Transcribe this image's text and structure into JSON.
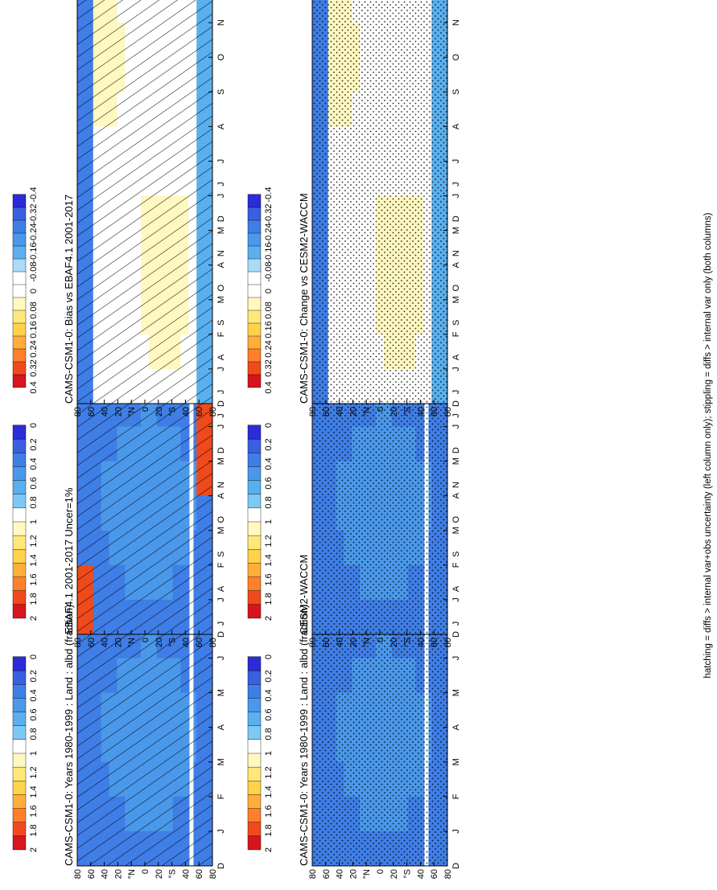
{
  "figure": {
    "footnote": "hatching = diffs > internal var+obs uncertainty (left column only); stippling = diffs > internal var only (both columns)"
  },
  "colors": {
    "abs_scale": [
      "#2b2bd9",
      "#3a5fe0",
      "#3f7ee6",
      "#4a98ea",
      "#5ab0ee",
      "#7ccaf4",
      "#ffffff",
      "#fff8c0",
      "#ffe87a",
      "#ffd24a",
      "#ffae3a",
      "#ff7f2a",
      "#f04a1c",
      "#d8141e"
    ],
    "diff_scale": [
      "#2b2bd9",
      "#3a5fe0",
      "#3f7ee6",
      "#4a98ea",
      "#5ab0ee",
      "#a9dcf6",
      "#ffffff",
      "#ffffff",
      "#fff8c0",
      "#ffe87a",
      "#ffd24a",
      "#ffae3a",
      "#ff7f2a",
      "#f04a1c",
      "#d8141e"
    ]
  },
  "chart_data": [
    {
      "id": "p1",
      "type": "heatmap",
      "title": "CAMS-CSM1-0: Years 1980-1999 : Land : albd (fraction)",
      "x": [
        "D",
        "J",
        "F",
        "M",
        "A",
        "M",
        "J",
        "J",
        "A",
        "S",
        "O",
        "N",
        "D",
        "J"
      ],
      "y": [
        "80",
        "60",
        "40",
        "20",
        "°N",
        "0",
        "20",
        "°S",
        "40",
        "60",
        "80"
      ],
      "colorbar": [
        "2",
        "1.8",
        "1.6",
        "1.4",
        "1.2",
        "1",
        "0.8",
        "0.6",
        "0.4",
        "0.2",
        "0"
      ],
      "field_range": [
        0.2,
        0.6
      ],
      "overlay": "hatch"
    },
    {
      "id": "p2",
      "type": "heatmap",
      "title": "CAMS-CSM1-0: Years 1980-1999 : Land : albd (fraction)",
      "x": [
        "D",
        "J",
        "F",
        "M",
        "A",
        "M",
        "J",
        "J",
        "A",
        "S",
        "O",
        "N",
        "D",
        "J"
      ],
      "y": [
        "80",
        "60",
        "40",
        "20",
        "°N",
        "0",
        "20",
        "°S",
        "40",
        "60",
        "80"
      ],
      "colorbar": [
        "2",
        "1.8",
        "1.6",
        "1.4",
        "1.2",
        "1",
        "0.8",
        "0.6",
        "0.4",
        "0.2",
        "0"
      ],
      "field_range": [
        0.2,
        0.6
      ],
      "overlay": "stipple"
    },
    {
      "id": "p3",
      "type": "heatmap",
      "title": "EBAF4.1 2001-2017 Uncer=1%",
      "x": [
        "D",
        "J",
        "F",
        "M",
        "A",
        "M",
        "J",
        "J",
        "A",
        "S",
        "O",
        "N",
        "D",
        "J"
      ],
      "y": [
        "80",
        "60",
        "40",
        "20",
        "°N",
        "0",
        "20",
        "°S",
        "40",
        "60",
        "80"
      ],
      "colorbar": [
        "2",
        "1.8",
        "1.6",
        "1.4",
        "1.2",
        "1",
        "0.8",
        "0.6",
        "0.4",
        "0.2",
        "0"
      ],
      "field_range": [
        0.2,
        2.0
      ],
      "overlay": "hatch"
    },
    {
      "id": "p4",
      "type": "heatmap",
      "title": "CESM2-WACCM",
      "x": [
        "D",
        "J",
        "F",
        "M",
        "A",
        "M",
        "J",
        "J",
        "A",
        "S",
        "O",
        "N",
        "D",
        "J"
      ],
      "y": [
        "80",
        "60",
        "40",
        "20",
        "°N",
        "0",
        "20",
        "°S",
        "40",
        "60",
        "80"
      ],
      "colorbar": [
        "2",
        "1.8",
        "1.6",
        "1.4",
        "1.2",
        "1",
        "0.8",
        "0.6",
        "0.4",
        "0.2",
        "0"
      ],
      "field_range": [
        0.2,
        0.6
      ],
      "overlay": "stipple"
    },
    {
      "id": "p5",
      "type": "heatmap",
      "title": "CAMS-CSM1-0: Bias vs EBAF4.1 2001-2017",
      "x": [
        "D",
        "J",
        "F",
        "M",
        "A",
        "M",
        "J",
        "J",
        "A",
        "S",
        "O",
        "N",
        "D",
        "J"
      ],
      "y": [
        "80",
        "60",
        "40",
        "20",
        "°N",
        "0",
        "20",
        "°S",
        "40",
        "60",
        "80"
      ],
      "colorbar": [
        "0.4",
        "0.32",
        "0.24",
        "0.16",
        "0.08",
        "0",
        "-0.08",
        "-0.16",
        "-0.24",
        "-0.32",
        "-0.4"
      ],
      "field_range": [
        -0.4,
        0.16
      ],
      "overlay": "hatch"
    },
    {
      "id": "p6",
      "type": "heatmap",
      "title": "CAMS-CSM1-0: Change vs CESM2-WACCM",
      "x": [
        "D",
        "J",
        "F",
        "M",
        "A",
        "M",
        "J",
        "J",
        "A",
        "S",
        "O",
        "N",
        "D",
        "J"
      ],
      "y": [
        "80",
        "60",
        "40",
        "20",
        "°N",
        "0",
        "20",
        "°S",
        "40",
        "60",
        "80"
      ],
      "colorbar": [
        "0.4",
        "0.32",
        "0.24",
        "0.16",
        "0.08",
        "0",
        "-0.08",
        "-0.16",
        "-0.24",
        "-0.32",
        "-0.4"
      ],
      "field_range": [
        -0.4,
        0.32
      ],
      "overlay": "stipple"
    }
  ]
}
